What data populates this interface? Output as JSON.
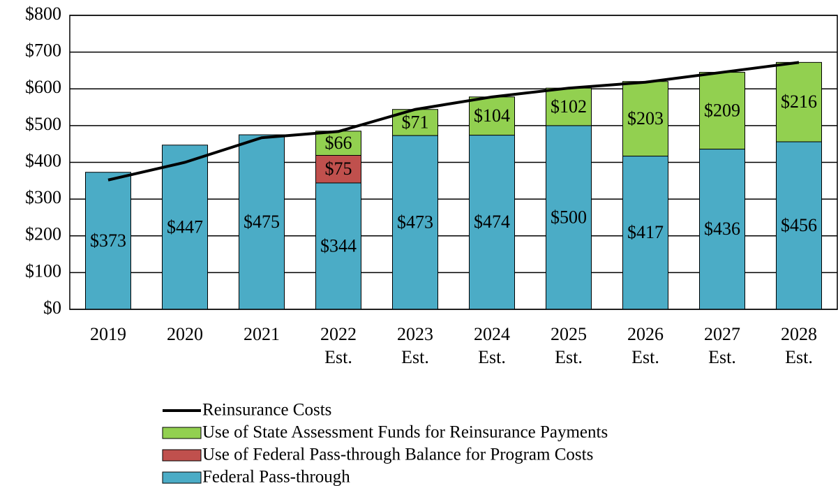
{
  "chart_data": {
    "type": "stacked_bar_line",
    "categories": [
      "2019",
      "2020",
      "2021",
      "2022\nEst.",
      "2023\nEst.",
      "2024\nEst.",
      "2025\nEst.",
      "2026\nEst.",
      "2027\nEst.",
      "2028\nEst."
    ],
    "series": [
      {
        "name": "Federal Pass-through",
        "color": "#4bacc6",
        "type": "bar",
        "values": [
          373,
          447,
          475,
          344,
          473,
          474,
          500,
          417,
          436,
          456
        ],
        "value_labels": [
          "$373",
          "$447",
          "$475",
          "$344",
          "$473",
          "$474",
          "$500",
          "$417",
          "$436",
          "$456"
        ]
      },
      {
        "name": "Use of Federal Pass-through Balance for Program Costs",
        "color": "#c0504d",
        "type": "bar",
        "values": [
          null,
          null,
          null,
          75,
          null,
          null,
          null,
          null,
          null,
          null
        ],
        "value_labels": [
          null,
          null,
          null,
          "$75",
          null,
          null,
          null,
          null,
          null,
          null
        ]
      },
      {
        "name": "Use of State Assessment Funds for Reinsurance Payments",
        "color": "#92d050",
        "type": "bar",
        "values": [
          null,
          null,
          null,
          66,
          71,
          104,
          102,
          203,
          209,
          216
        ],
        "value_labels": [
          null,
          null,
          null,
          "$66",
          "$71",
          "$104",
          "$102",
          "$203",
          "$209",
          "$216"
        ]
      },
      {
        "name": "Reinsurance Costs",
        "color": "#000000",
        "type": "line",
        "values": [
          352,
          400,
          467,
          484,
          544,
          578,
          602,
          618,
          645,
          672
        ]
      }
    ],
    "ylim": [
      0,
      800
    ],
    "yticks": [
      {
        "value": 0,
        "label": "$0"
      },
      {
        "value": 100,
        "label": "$100"
      },
      {
        "value": 200,
        "label": "$200"
      },
      {
        "value": 300,
        "label": "$300"
      },
      {
        "value": 400,
        "label": "$400"
      },
      {
        "value": 500,
        "label": "$500"
      },
      {
        "value": 600,
        "label": "$600"
      },
      {
        "value": 700,
        "label": "$700"
      },
      {
        "value": 800,
        "label": "$800"
      }
    ],
    "grid": true,
    "legend": "bottom"
  }
}
